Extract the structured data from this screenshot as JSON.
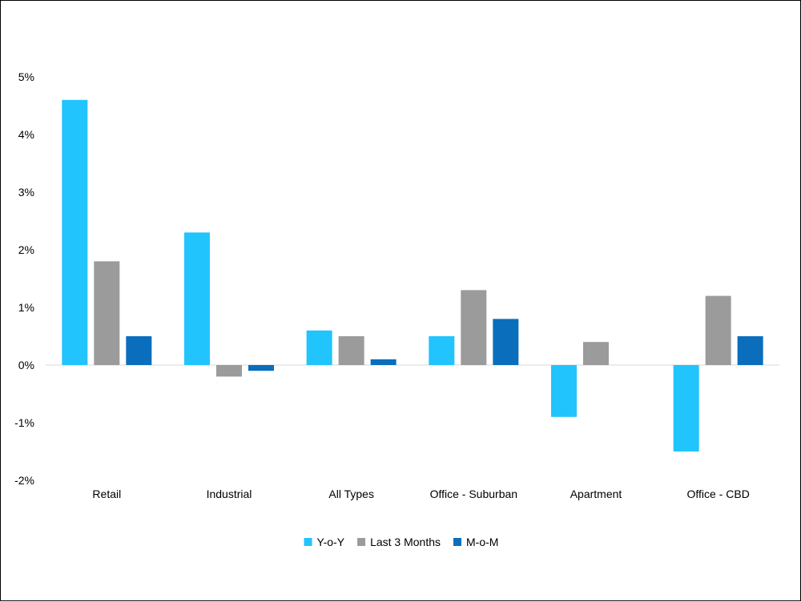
{
  "chart_data": {
    "type": "bar",
    "categories": [
      "Retail",
      "Industrial",
      "All Types",
      "Office - Suburban",
      "Apartment",
      "Office - CBD"
    ],
    "series": [
      {
        "name": "Y-o-Y",
        "color": "#21C4FC",
        "values": [
          4.6,
          2.3,
          0.6,
          0.5,
          -0.9,
          -1.5
        ]
      },
      {
        "name": "Last 3 Months",
        "color": "#9B9B9B",
        "values": [
          1.8,
          -0.2,
          0.5,
          1.3,
          0.4,
          1.2
        ]
      },
      {
        "name": "M-o-M",
        "color": "#0A6EBD",
        "values": [
          0.5,
          -0.1,
          0.1,
          0.8,
          0.0,
          0.5
        ]
      }
    ],
    "yticks": [
      -2,
      -1,
      0,
      1,
      2,
      3,
      4,
      5
    ],
    "ytick_labels": [
      "-2%",
      "-1%",
      "0%",
      "1%",
      "2%",
      "3%",
      "4%",
      "5%"
    ],
    "ylim": [
      -2,
      5
    ],
    "legend_position": "bottom-center",
    "grid": false,
    "zero_line_color": "#D9D9D9"
  }
}
